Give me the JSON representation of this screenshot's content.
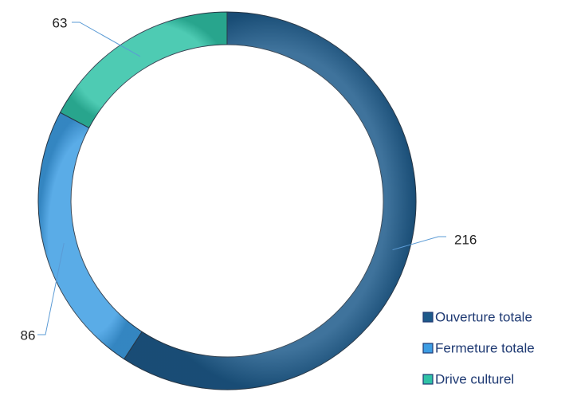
{
  "chart_data": {
    "type": "donut",
    "categories": [
      "Ouverture totale",
      "Fermeture totale",
      "Drive culturel"
    ],
    "values": [
      216,
      86,
      63
    ],
    "colors": [
      "#1d5a8a",
      "#3d9de3",
      "#2fc2a6"
    ],
    "legend": "bottom-right"
  }
}
